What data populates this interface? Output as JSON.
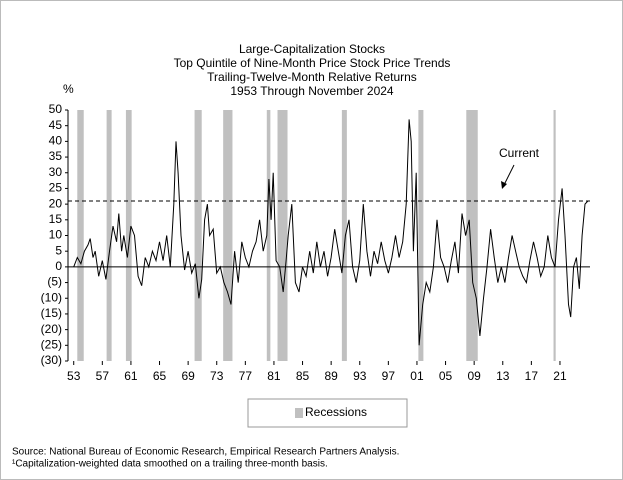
{
  "chart_data": {
    "type": "line",
    "title": [
      "Large-Capitalization Stocks",
      "Top Quintile of Nine-Month Price Stock Price Trends",
      "Trailing-Twelve-Month Relative Returns",
      "1953 Through November 2024"
    ],
    "ylabel": "%",
    "color": "#000000",
    "x": [
      1953,
      1953.5,
      1954,
      1954.5,
      1955,
      1955.3,
      1955.7,
      1956,
      1956.5,
      1957,
      1957.5,
      1958,
      1958.5,
      1959,
      1959.3,
      1959.7,
      1960,
      1960.5,
      1961,
      1961.5,
      1962,
      1962.5,
      1963,
      1963.5,
      1964,
      1964.5,
      1965,
      1965.5,
      1966,
      1966.5,
      1967,
      1967.3,
      1967.6,
      1968,
      1968.5,
      1969,
      1969.5,
      1970,
      1970.5,
      1970.9,
      1971.3,
      1971.7,
      1972,
      1972.5,
      1973,
      1973.5,
      1974,
      1974.5,
      1975,
      1975.5,
      1976,
      1976.5,
      1977,
      1977.5,
      1978,
      1978.5,
      1979,
      1979.5,
      1980,
      1980.3,
      1980.6,
      1980.9,
      1981.3,
      1981.8,
      1982.3,
      1982.7,
      1983,
      1983.5,
      1984,
      1984.5,
      1985,
      1985.5,
      1986,
      1986.5,
      1987,
      1987.5,
      1988,
      1988.5,
      1989,
      1989.5,
      1990,
      1990.5,
      1991,
      1991.5,
      1992,
      1992.5,
      1993,
      1993.5,
      1994,
      1994.5,
      1995,
      1995.5,
      1996,
      1996.5,
      1997,
      1997.5,
      1998,
      1998.5,
      1999,
      1999.5,
      1999.9,
      2000.2,
      2000.5,
      2000.9,
      2001.3,
      2001.8,
      2002.3,
      2002.8,
      2003.3,
      2003.8,
      2004.3,
      2004.8,
      2005.3,
      2005.8,
      2006.3,
      2006.8,
      2007.3,
      2007.8,
      2008.3,
      2008.8,
      2009.3,
      2009.8,
      2010.3,
      2010.8,
      2011.3,
      2011.8,
      2012.3,
      2012.8,
      2013.3,
      2013.8,
      2014.3,
      2014.8,
      2015.3,
      2015.8,
      2016.3,
      2016.8,
      2017.3,
      2017.8,
      2018.3,
      2018.8,
      2019.3,
      2019.8,
      2020.3,
      2020.8,
      2021.3,
      2021.7,
      2022.2,
      2022.5,
      2022.9,
      2023.3,
      2023.7,
      2024.1,
      2024.5,
      2024.9
    ],
    "values": [
      0,
      3,
      1,
      5,
      7,
      9,
      3,
      5,
      -3,
      2,
      -4,
      5,
      13,
      8,
      17,
      5,
      10,
      3,
      13,
      10,
      -3,
      -6,
      3,
      0,
      5,
      2,
      8,
      2,
      10,
      0,
      20,
      40,
      30,
      10,
      -1,
      5,
      -2,
      1,
      -10,
      -4,
      15,
      20,
      10,
      12,
      -2,
      0,
      -5,
      -8,
      -12,
      5,
      -5,
      8,
      3,
      0,
      5,
      8,
      15,
      5,
      10,
      28,
      15,
      30,
      2,
      0,
      -8,
      2,
      10,
      20,
      -5,
      -8,
      0,
      -3,
      5,
      -2,
      8,
      0,
      5,
      -3,
      3,
      12,
      5,
      -2,
      10,
      15,
      0,
      -5,
      2,
      20,
      5,
      -3,
      5,
      1,
      8,
      2,
      -2,
      3,
      10,
      3,
      8,
      20,
      47,
      40,
      5,
      30,
      -25,
      -12,
      -5,
      -8,
      0,
      15,
      3,
      0,
      -5,
      2,
      8,
      -2,
      17,
      10,
      15,
      -5,
      -10,
      -22,
      -10,
      0,
      12,
      3,
      -5,
      0,
      -5,
      3,
      10,
      5,
      0,
      -3,
      -5,
      2,
      8,
      3,
      -3,
      0,
      10,
      3,
      0,
      15,
      25,
      10,
      -12,
      -16,
      0,
      3,
      -7,
      10,
      20,
      21
    ],
    "xlim": [
      1952.2,
      2025.2
    ],
    "xticks": [
      {
        "value": 1953,
        "label": "53"
      },
      {
        "value": 1957,
        "label": "57"
      },
      {
        "value": 1961,
        "label": "61"
      },
      {
        "value": 1965,
        "label": "65"
      },
      {
        "value": 1969,
        "label": "69"
      },
      {
        "value": 1973,
        "label": "73"
      },
      {
        "value": 1977,
        "label": "77"
      },
      {
        "value": 1981,
        "label": "81"
      },
      {
        "value": 1985,
        "label": "85"
      },
      {
        "value": 1989,
        "label": "89"
      },
      {
        "value": 1993,
        "label": "93"
      },
      {
        "value": 1997,
        "label": "97"
      },
      {
        "value": 2001,
        "label": "01"
      },
      {
        "value": 2005,
        "label": "05"
      },
      {
        "value": 2009,
        "label": "09"
      },
      {
        "value": 2013,
        "label": "13"
      },
      {
        "value": 2017,
        "label": "17"
      },
      {
        "value": 2021,
        "label": "21"
      }
    ],
    "ylim": [
      -30,
      50
    ],
    "yticks": [
      50,
      45,
      40,
      35,
      30,
      25,
      20,
      15,
      10,
      5,
      0,
      {
        "value": -5,
        "label": "(5)"
      },
      {
        "value": -10,
        "label": "(10)"
      },
      {
        "value": -15,
        "label": "(15)"
      },
      {
        "value": -20,
        "label": "(20)"
      },
      {
        "value": -25,
        "label": "(25)"
      },
      {
        "value": -30,
        "label": "(30)"
      }
    ],
    "recessions": {
      "label": "Recessions",
      "color": "#c0c0c0",
      "spans": [
        [
          1953.5,
          1954.4
        ],
        [
          1957.6,
          1958.3
        ],
        [
          1960.3,
          1961.1
        ],
        [
          1969.9,
          1970.9
        ],
        [
          1973.9,
          1975.2
        ],
        [
          1980.0,
          1980.5
        ],
        [
          1981.5,
          1982.9
        ],
        [
          1990.5,
          1991.2
        ],
        [
          2001.2,
          2001.9
        ],
        [
          2007.9,
          2009.5
        ],
        [
          2020.1,
          2020.4
        ]
      ]
    },
    "reference_line": {
      "value": 21,
      "label": "Current"
    },
    "notes": [
      "Source: National Bureau of Economic Research, Empirical Research Partners Analysis.",
      "¹Capitalization-weighted data smoothed on a trailing three-month basis."
    ]
  }
}
